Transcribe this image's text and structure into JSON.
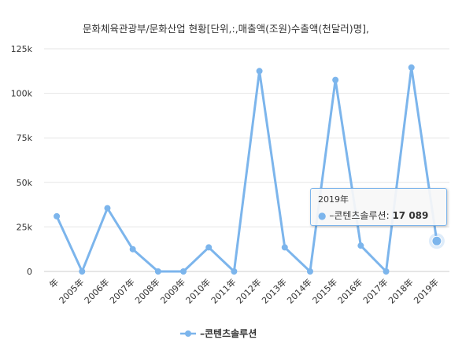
{
  "chart_data": {
    "type": "line",
    "title": "문화체육관광부/문화산업 현황[단위,:,매출액(조원)수출액(천달러)명],",
    "categories": [
      "年",
      "2005年",
      "2006年",
      "2007年",
      "2008年",
      "2009年",
      "2010年",
      "2011年",
      "2012年",
      "2013年",
      "2014年",
      "2015年",
      "2016年",
      "2017年",
      "2018年",
      "2019年"
    ],
    "series": [
      {
        "name": "–콘텐츠솔루션",
        "color": "#7cb5ec",
        "values": [
          31000,
          0,
          35500,
          12500,
          0,
          0,
          13500,
          0,
          112500,
          13500,
          0,
          107500,
          14500,
          0,
          114500,
          17089
        ]
      }
    ],
    "ylim": [
      0,
      125000
    ],
    "yticks": [
      {
        "value": 0,
        "label": "0"
      },
      {
        "value": 25000,
        "label": "25k"
      },
      {
        "value": 50000,
        "label": "50k"
      },
      {
        "value": 75000,
        "label": "75k"
      },
      {
        "value": 100000,
        "label": "100k"
      },
      {
        "value": 125000,
        "label": "125k"
      }
    ],
    "grid": true,
    "legend": "bottom-center"
  },
  "tooltip": {
    "date": "2019年",
    "series_name": "–콘텐츠솔루션",
    "separator": ":",
    "value": "17 089"
  }
}
